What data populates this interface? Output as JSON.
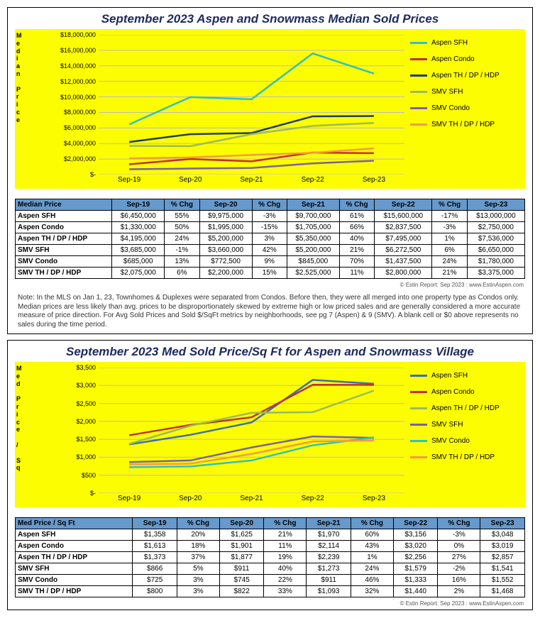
{
  "credit": "© Estin Report: Sep 2023 : www.EstinAspen.com",
  "note": "Note: In the MLS on Jan 1, 23, Townhomes & Duplexes were separated from Condos. Before then, they were all merged into one property type as Condos only. Median prices are less likely than avg. prices to be disproportionately skewed by extreme high or low priced sales and are generally considered a more accurate measure of price direction. For Avg Sold Prices and Sold $/SqFt metrics by neighborhoods, see pg 7 (Aspen) & 9 (SMV). A blank cell or $0 above represents no sales during the time period.",
  "chart1": {
    "title": "September 2023 Aspen and Snowmass Median Sold Prices",
    "ylabel_chars": [
      "M",
      "e",
      "d",
      "i",
      "a",
      "n",
      "",
      "P",
      "r",
      "i",
      "c",
      "e"
    ],
    "x_categories": [
      "Sep-19",
      "Sep-20",
      "Sep-21",
      "Sep-22",
      "Sep-23"
    ],
    "ylim": [
      0,
      18000000
    ],
    "ytick_step": 2000000,
    "ytick_fmt": "dollar",
    "background": "#fdfd01",
    "grid_color": "#bbbbbb",
    "series": [
      {
        "name": "Aspen SFH",
        "color": "#2fc1c1",
        "values": [
          6450000,
          9975000,
          9700000,
          15600000,
          13000000
        ]
      },
      {
        "name": "Aspen Condo",
        "color": "#c0302f",
        "values": [
          1330000,
          1995000,
          1705000,
          2837500,
          2750000
        ]
      },
      {
        "name": "Aspen TH / DP / HDP",
        "color": "#1f3b70",
        "values": [
          4195000,
          5200000,
          5350000,
          7495000,
          7536000
        ]
      },
      {
        "name": "SMV SFH",
        "color": "#9bbb59",
        "values": [
          3685000,
          3660000,
          5200000,
          6272500,
          6650000
        ]
      },
      {
        "name": "SMV Condo",
        "color": "#7a62a4",
        "values": [
          685000,
          772500,
          845000,
          1437500,
          1780000
        ]
      },
      {
        "name": "SMV TH / DP / HDP",
        "color": "#f59b3d",
        "values": [
          2075000,
          2200000,
          2525000,
          2800000,
          3375000
        ]
      }
    ],
    "table": {
      "header_label": "Median Price",
      "cols": [
        "Sep-19",
        "% Chg",
        "Sep-20",
        "% Chg",
        "Sep-21",
        "% Chg",
        "Sep-22",
        "% Chg",
        "Sep-23"
      ],
      "rows": [
        {
          "hl": false,
          "label": "Aspen SFH",
          "cells": [
            "$6,450,000",
            "55%",
            "$9,975,000",
            "-3%",
            "$9,700,000",
            "61%",
            "$15,600,000",
            "-17%",
            "$13,000,000"
          ]
        },
        {
          "hl": true,
          "label": "Aspen Condo",
          "cells": [
            "$1,330,000",
            "50%",
            "$1,995,000",
            "-15%",
            "$1,705,000",
            "66%",
            "$2,837,500",
            "-3%",
            "$2,750,000"
          ]
        },
        {
          "hl": false,
          "label": "Aspen TH / DP / HDP",
          "cells": [
            "$4,195,000",
            "24%",
            "$5,200,000",
            "3%",
            "$5,350,000",
            "40%",
            "$7,495,000",
            "1%",
            "$7,536,000"
          ]
        },
        {
          "hl": true,
          "label": "SMV SFH",
          "cells": [
            "$3,685,000",
            "-1%",
            "$3,660,000",
            "42%",
            "$5,200,000",
            "21%",
            "$6,272,500",
            "6%",
            "$6,650,000"
          ]
        },
        {
          "hl": false,
          "label": "SMV Condo",
          "cells": [
            "$685,000",
            "13%",
            "$772,500",
            "9%",
            "$845,000",
            "70%",
            "$1,437,500",
            "24%",
            "$1,780,000"
          ]
        },
        {
          "hl": true,
          "label": "SMV TH / DP / HDP",
          "cells": [
            "$2,075,000",
            "6%",
            "$2,200,000",
            "15%",
            "$2,525,000",
            "11%",
            "$2,800,000",
            "21%",
            "$3,375,000"
          ]
        }
      ]
    }
  },
  "chart2": {
    "title": "September 2023 Med Sold Price/Sq Ft for Aspen and Snowmass Village",
    "ylabel_chars": [
      "M",
      "e",
      "d",
      "",
      "P",
      "r",
      "i",
      "c",
      "e",
      "",
      "/",
      "",
      "S",
      "q"
    ],
    "x_categories": [
      "Sep-19",
      "Sep-20",
      "Sep-21",
      "Sep-22",
      "Sep-23"
    ],
    "ylim": [
      0,
      3500
    ],
    "ytick_step": 500,
    "ytick_fmt": "dollar_small",
    "background": "#fdfd01",
    "grid_color": "#bbbbbb",
    "series": [
      {
        "name": "Aspen SFH",
        "color": "#3a6fb0",
        "values": [
          1358,
          1625,
          1970,
          3156,
          3048
        ]
      },
      {
        "name": "Aspen Condo",
        "color": "#c0302f",
        "values": [
          1613,
          1901,
          2114,
          3020,
          3019
        ]
      },
      {
        "name": "Aspen TH / DP / HDP",
        "color": "#9bbb59",
        "values": [
          1373,
          1877,
          2239,
          2256,
          2857
        ]
      },
      {
        "name": "SMV SFH",
        "color": "#7a62a4",
        "values": [
          866,
          911,
          1273,
          1579,
          1541
        ]
      },
      {
        "name": "SMV Condo",
        "color": "#2fc1c1",
        "values": [
          725,
          745,
          911,
          1333,
          1552
        ]
      },
      {
        "name": "SMV TH / DP / HDP",
        "color": "#f59b3d",
        "values": [
          800,
          822,
          1093,
          1440,
          1468
        ]
      }
    ],
    "table": {
      "header_label": "Med Price / Sq Ft",
      "cols": [
        "Sep-19",
        "% Chg",
        "Sep-20",
        "% Chg",
        "Sep-21",
        "% Chg",
        "Sep-22",
        "% Chg",
        "Sep-23"
      ],
      "rows": [
        {
          "hl": false,
          "label": "Aspen SFH",
          "cells": [
            "$1,358",
            "20%",
            "$1,625",
            "21%",
            "$1,970",
            "60%",
            "$3,156",
            "-3%",
            "$3,048"
          ]
        },
        {
          "hl": true,
          "label": "Aspen Condo",
          "cells": [
            "$1,613",
            "18%",
            "$1,901",
            "11%",
            "$2,114",
            "43%",
            "$3,020",
            "0%",
            "$3,019"
          ]
        },
        {
          "hl": false,
          "label": "Aspen TH / DP / HDP",
          "cells": [
            "$1,373",
            "37%",
            "$1,877",
            "19%",
            "$2,239",
            "1%",
            "$2,256",
            "27%",
            "$2,857"
          ]
        },
        {
          "hl": true,
          "label": "SMV SFH",
          "cells": [
            "$866",
            "5%",
            "$911",
            "40%",
            "$1,273",
            "24%",
            "$1,579",
            "-2%",
            "$1,541"
          ]
        },
        {
          "hl": false,
          "label": "SMV Condo",
          "cells": [
            "$725",
            "3%",
            "$745",
            "22%",
            "$911",
            "46%",
            "$1,333",
            "16%",
            "$1,552"
          ]
        },
        {
          "hl": true,
          "label": "SMV TH / DP / HDP",
          "cells": [
            "$800",
            "3%",
            "$822",
            "33%",
            "$1,093",
            "32%",
            "$1,440",
            "2%",
            "$1,468"
          ]
        }
      ]
    }
  }
}
